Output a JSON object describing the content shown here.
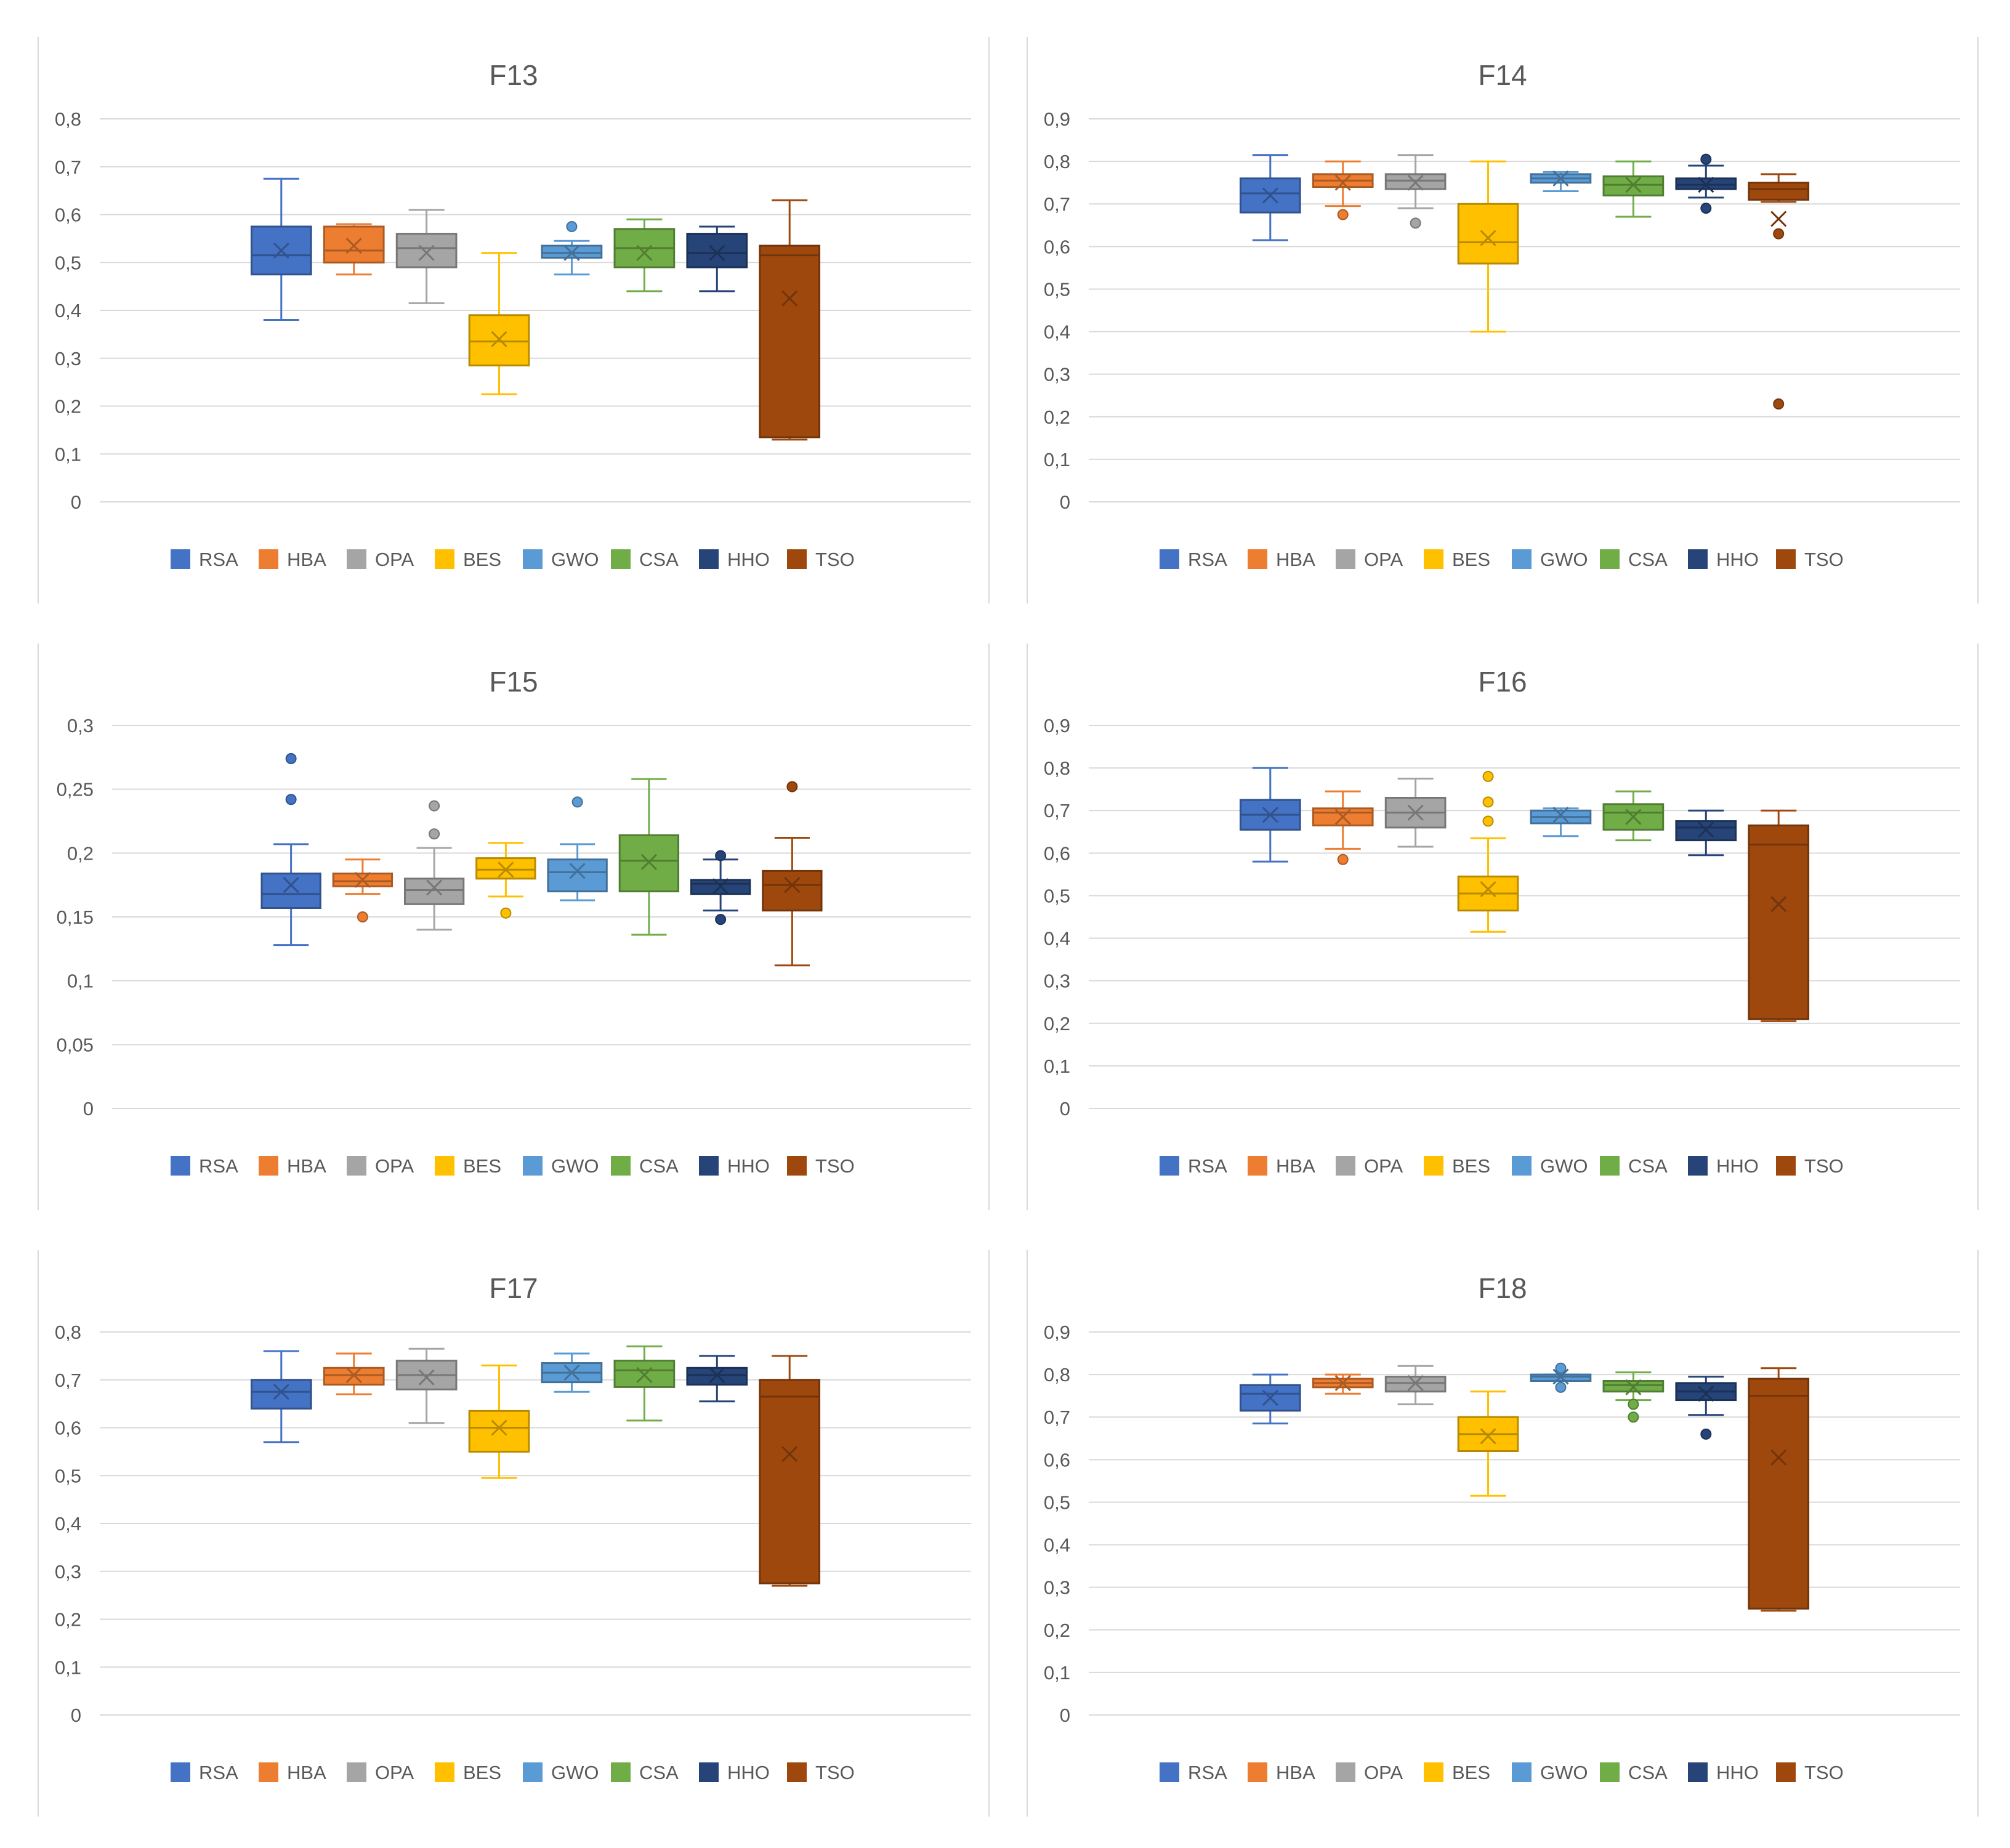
{
  "legend": [
    "RSA",
    "HBA",
    "OPA",
    "BES",
    "GWO",
    "CSA",
    "HHO",
    "TSO"
  ],
  "colors": {
    "RSA": "#4472C4",
    "HBA": "#ED7D31",
    "OPA": "#A5A5A5",
    "BES": "#FFC000",
    "GWO": "#5B9BD5",
    "CSA": "#70AD47",
    "HHO": "#264478",
    "TSO": "#9E480E",
    "grid": "#D9D9D9",
    "axis_text": "#595959",
    "title_text": "#595959",
    "frame": "#D9D9D9"
  },
  "chart_data": [
    {
      "type": "boxplot",
      "title": "F13",
      "legend_position": "bottom",
      "grid": true,
      "ylim": [
        0,
        0.8
      ],
      "y_ticks": [
        "0",
        "0,1",
        "0,2",
        "0,3",
        "0,4",
        "0,5",
        "0,6",
        "0,7",
        "0,8"
      ],
      "series": [
        {
          "name": "RSA",
          "min": 0.38,
          "q1": 0.475,
          "median": 0.515,
          "q3": 0.575,
          "max": 0.675,
          "mean": 0.525,
          "outliers": []
        },
        {
          "name": "HBA",
          "min": 0.475,
          "q1": 0.5,
          "median": 0.525,
          "q3": 0.575,
          "max": 0.58,
          "mean": 0.535,
          "outliers": []
        },
        {
          "name": "OPA",
          "min": 0.415,
          "q1": 0.49,
          "median": 0.53,
          "q3": 0.56,
          "max": 0.61,
          "mean": 0.52,
          "outliers": []
        },
        {
          "name": "BES",
          "min": 0.225,
          "q1": 0.285,
          "median": 0.335,
          "q3": 0.39,
          "max": 0.52,
          "mean": 0.34,
          "outliers": []
        },
        {
          "name": "GWO",
          "min": 0.475,
          "q1": 0.51,
          "median": 0.52,
          "q3": 0.535,
          "max": 0.545,
          "mean": 0.52,
          "outliers": [
            0.575
          ]
        },
        {
          "name": "CSA",
          "min": 0.44,
          "q1": 0.49,
          "median": 0.53,
          "q3": 0.57,
          "max": 0.59,
          "mean": 0.52,
          "outliers": []
        },
        {
          "name": "HHO",
          "min": 0.44,
          "q1": 0.49,
          "median": 0.52,
          "q3": 0.56,
          "max": 0.575,
          "mean": 0.52,
          "outliers": []
        },
        {
          "name": "TSO",
          "min": 0.13,
          "q1": 0.135,
          "median": 0.515,
          "q3": 0.535,
          "max": 0.63,
          "mean": 0.425,
          "outliers": []
        }
      ]
    },
    {
      "type": "boxplot",
      "title": "F14",
      "legend_position": "bottom",
      "grid": true,
      "ylim": [
        0,
        0.9
      ],
      "y_ticks": [
        "0",
        "0,1",
        "0,2",
        "0,3",
        "0,4",
        "0,5",
        "0,6",
        "0,7",
        "0,8",
        "0,9"
      ],
      "series": [
        {
          "name": "RSA",
          "min": 0.615,
          "q1": 0.68,
          "median": 0.725,
          "q3": 0.76,
          "max": 0.815,
          "mean": 0.72,
          "outliers": []
        },
        {
          "name": "HBA",
          "min": 0.695,
          "q1": 0.74,
          "median": 0.755,
          "q3": 0.77,
          "max": 0.8,
          "mean": 0.75,
          "outliers": [
            0.675
          ]
        },
        {
          "name": "OPA",
          "min": 0.69,
          "q1": 0.735,
          "median": 0.755,
          "q3": 0.77,
          "max": 0.815,
          "mean": 0.75,
          "outliers": [
            0.655
          ]
        },
        {
          "name": "BES",
          "min": 0.4,
          "q1": 0.56,
          "median": 0.61,
          "q3": 0.7,
          "max": 0.8,
          "mean": 0.62,
          "outliers": []
        },
        {
          "name": "GWO",
          "min": 0.73,
          "q1": 0.75,
          "median": 0.76,
          "q3": 0.77,
          "max": 0.775,
          "mean": 0.76,
          "outliers": []
        },
        {
          "name": "CSA",
          "min": 0.67,
          "q1": 0.72,
          "median": 0.745,
          "q3": 0.765,
          "max": 0.8,
          "mean": 0.745,
          "outliers": []
        },
        {
          "name": "HHO",
          "min": 0.715,
          "q1": 0.735,
          "median": 0.745,
          "q3": 0.76,
          "max": 0.79,
          "mean": 0.745,
          "outliers": [
            0.805,
            0.69
          ]
        },
        {
          "name": "TSO",
          "min": 0.705,
          "q1": 0.71,
          "median": 0.735,
          "q3": 0.75,
          "max": 0.77,
          "mean": 0.665,
          "outliers": [
            0.63,
            0.23
          ]
        }
      ]
    },
    {
      "type": "boxplot",
      "title": "F15",
      "legend_position": "bottom",
      "grid": true,
      "ylim": [
        0,
        0.3
      ],
      "y_ticks": [
        "0",
        "0,05",
        "0,1",
        "0,15",
        "0,2",
        "0,25",
        "0,3"
      ],
      "series": [
        {
          "name": "RSA",
          "min": 0.128,
          "q1": 0.157,
          "median": 0.168,
          "q3": 0.184,
          "max": 0.207,
          "mean": 0.175,
          "outliers": [
            0.242,
            0.274
          ]
        },
        {
          "name": "HBA",
          "min": 0.168,
          "q1": 0.174,
          "median": 0.178,
          "q3": 0.184,
          "max": 0.195,
          "mean": 0.179,
          "outliers": [
            0.15
          ]
        },
        {
          "name": "OPA",
          "min": 0.14,
          "q1": 0.16,
          "median": 0.171,
          "q3": 0.18,
          "max": 0.204,
          "mean": 0.173,
          "outliers": [
            0.215,
            0.237
          ]
        },
        {
          "name": "BES",
          "min": 0.166,
          "q1": 0.18,
          "median": 0.187,
          "q3": 0.196,
          "max": 0.208,
          "mean": 0.187,
          "outliers": [
            0.153
          ]
        },
        {
          "name": "GWO",
          "min": 0.163,
          "q1": 0.17,
          "median": 0.185,
          "q3": 0.195,
          "max": 0.207,
          "mean": 0.186,
          "outliers": [
            0.24
          ]
        },
        {
          "name": "CSA",
          "min": 0.136,
          "q1": 0.17,
          "median": 0.194,
          "q3": 0.214,
          "max": 0.258,
          "mean": 0.193,
          "outliers": []
        },
        {
          "name": "HHO",
          "min": 0.155,
          "q1": 0.168,
          "median": 0.176,
          "q3": 0.179,
          "max": 0.195,
          "mean": 0.174,
          "outliers": [
            0.148,
            0.198
          ]
        },
        {
          "name": "TSO",
          "min": 0.112,
          "q1": 0.155,
          "median": 0.175,
          "q3": 0.186,
          "max": 0.212,
          "mean": 0.175,
          "outliers": [
            0.252
          ]
        }
      ]
    },
    {
      "type": "boxplot",
      "title": "F16",
      "legend_position": "bottom",
      "grid": true,
      "ylim": [
        0,
        0.9
      ],
      "y_ticks": [
        "0",
        "0,1",
        "0,2",
        "0,3",
        "0,4",
        "0,5",
        "0,6",
        "0,7",
        "0,8",
        "0,9"
      ],
      "series": [
        {
          "name": "RSA",
          "min": 0.58,
          "q1": 0.655,
          "median": 0.69,
          "q3": 0.725,
          "max": 0.8,
          "mean": 0.69,
          "outliers": []
        },
        {
          "name": "HBA",
          "min": 0.61,
          "q1": 0.665,
          "median": 0.695,
          "q3": 0.705,
          "max": 0.745,
          "mean": 0.685,
          "outliers": [
            0.585
          ]
        },
        {
          "name": "OPA",
          "min": 0.615,
          "q1": 0.66,
          "median": 0.695,
          "q3": 0.73,
          "max": 0.775,
          "mean": 0.695,
          "outliers": []
        },
        {
          "name": "BES",
          "min": 0.415,
          "q1": 0.465,
          "median": 0.505,
          "q3": 0.545,
          "max": 0.635,
          "mean": 0.515,
          "outliers": [
            0.675,
            0.72,
            0.78
          ]
        },
        {
          "name": "GWO",
          "min": 0.64,
          "q1": 0.67,
          "median": 0.685,
          "q3": 0.7,
          "max": 0.705,
          "mean": 0.69,
          "outliers": []
        },
        {
          "name": "CSA",
          "min": 0.63,
          "q1": 0.655,
          "median": 0.695,
          "q3": 0.715,
          "max": 0.745,
          "mean": 0.685,
          "outliers": []
        },
        {
          "name": "HHO",
          "min": 0.595,
          "q1": 0.63,
          "median": 0.66,
          "q3": 0.675,
          "max": 0.7,
          "mean": 0.655,
          "outliers": []
        },
        {
          "name": "TSO",
          "min": 0.205,
          "q1": 0.21,
          "median": 0.62,
          "q3": 0.665,
          "max": 0.7,
          "mean": 0.48,
          "outliers": []
        }
      ]
    },
    {
      "type": "boxplot",
      "title": "F17",
      "legend_position": "bottom",
      "grid": true,
      "ylim": [
        0,
        0.8
      ],
      "y_ticks": [
        "0",
        "0,1",
        "0,2",
        "0,3",
        "0,4",
        "0,5",
        "0,6",
        "0,7",
        "0,8"
      ],
      "series": [
        {
          "name": "RSA",
          "min": 0.57,
          "q1": 0.64,
          "median": 0.675,
          "q3": 0.7,
          "max": 0.76,
          "mean": 0.675,
          "outliers": []
        },
        {
          "name": "HBA",
          "min": 0.67,
          "q1": 0.69,
          "median": 0.71,
          "q3": 0.725,
          "max": 0.755,
          "mean": 0.71,
          "outliers": []
        },
        {
          "name": "OPA",
          "min": 0.61,
          "q1": 0.68,
          "median": 0.71,
          "q3": 0.74,
          "max": 0.765,
          "mean": 0.705,
          "outliers": []
        },
        {
          "name": "BES",
          "min": 0.495,
          "q1": 0.55,
          "median": 0.6,
          "q3": 0.635,
          "max": 0.73,
          "mean": 0.6,
          "outliers": []
        },
        {
          "name": "GWO",
          "min": 0.675,
          "q1": 0.695,
          "median": 0.715,
          "q3": 0.735,
          "max": 0.755,
          "mean": 0.715,
          "outliers": []
        },
        {
          "name": "CSA",
          "min": 0.615,
          "q1": 0.685,
          "median": 0.72,
          "q3": 0.74,
          "max": 0.77,
          "mean": 0.71,
          "outliers": []
        },
        {
          "name": "HHO",
          "min": 0.655,
          "q1": 0.69,
          "median": 0.71,
          "q3": 0.725,
          "max": 0.75,
          "mean": 0.71,
          "outliers": []
        },
        {
          "name": "TSO",
          "min": 0.27,
          "q1": 0.275,
          "median": 0.665,
          "q3": 0.7,
          "max": 0.75,
          "mean": 0.545,
          "outliers": []
        }
      ]
    },
    {
      "type": "boxplot",
      "title": "F18",
      "legend_position": "bottom",
      "grid": true,
      "ylim": [
        0,
        0.9
      ],
      "y_ticks": [
        "0",
        "0,1",
        "0,2",
        "0,3",
        "0,4",
        "0,5",
        "0,6",
        "0,7",
        "0,8",
        "0,9"
      ],
      "series": [
        {
          "name": "RSA",
          "min": 0.685,
          "q1": 0.715,
          "median": 0.755,
          "q3": 0.775,
          "max": 0.8,
          "mean": 0.745,
          "outliers": []
        },
        {
          "name": "HBA",
          "min": 0.755,
          "q1": 0.77,
          "median": 0.78,
          "q3": 0.79,
          "max": 0.8,
          "mean": 0.78,
          "outliers": []
        },
        {
          "name": "OPA",
          "min": 0.73,
          "q1": 0.76,
          "median": 0.78,
          "q3": 0.795,
          "max": 0.82,
          "mean": 0.78,
          "outliers": []
        },
        {
          "name": "BES",
          "min": 0.515,
          "q1": 0.62,
          "median": 0.66,
          "q3": 0.7,
          "max": 0.76,
          "mean": 0.655,
          "outliers": []
        },
        {
          "name": "GWO",
          "min": 0.785,
          "q1": 0.785,
          "median": 0.795,
          "q3": 0.8,
          "max": 0.8,
          "mean": 0.795,
          "outliers": [
            0.815,
            0.77
          ]
        },
        {
          "name": "CSA",
          "min": 0.74,
          "q1": 0.76,
          "median": 0.775,
          "q3": 0.785,
          "max": 0.805,
          "mean": 0.77,
          "outliers": [
            0.73,
            0.7
          ]
        },
        {
          "name": "HHO",
          "min": 0.705,
          "q1": 0.74,
          "median": 0.76,
          "q3": 0.78,
          "max": 0.795,
          "mean": 0.755,
          "outliers": [
            0.66
          ]
        },
        {
          "name": "TSO",
          "min": 0.245,
          "q1": 0.25,
          "median": 0.75,
          "q3": 0.79,
          "max": 0.815,
          "mean": 0.605,
          "outliers": []
        }
      ]
    }
  ]
}
